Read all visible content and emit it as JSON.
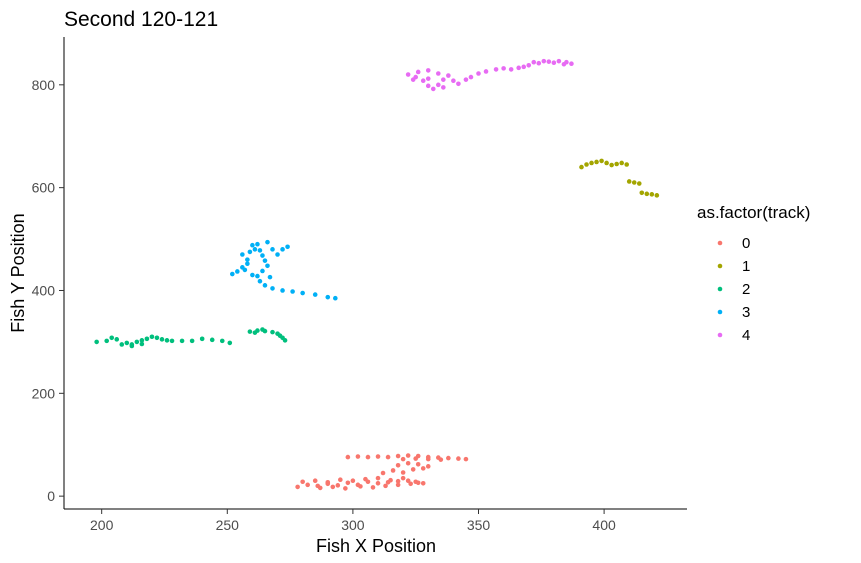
{
  "chart_data": {
    "type": "scatter",
    "title": "Second 120-121",
    "xlabel": "Fish X Position",
    "ylabel": "Fish Y Position",
    "xlim": [
      185,
      433
    ],
    "ylim": [
      -25,
      893
    ],
    "xticks": [
      200,
      250,
      300,
      350,
      400
    ],
    "yticks": [
      0,
      200,
      400,
      600,
      800
    ],
    "grid": false,
    "legend": {
      "title": "as.factor(track)",
      "position": "right",
      "entries": [
        "0",
        "1",
        "2",
        "3",
        "4"
      ]
    },
    "series": [
      {
        "name": "0",
        "color": "#F8766D",
        "points": [
          [
            278,
            18
          ],
          [
            282,
            22
          ],
          [
            286,
            20
          ],
          [
            290,
            24
          ],
          [
            294,
            21
          ],
          [
            298,
            26
          ],
          [
            302,
            22
          ],
          [
            306,
            28
          ],
          [
            310,
            25
          ],
          [
            314,
            27
          ],
          [
            318,
            29
          ],
          [
            322,
            30
          ],
          [
            326,
            26
          ],
          [
            280,
            28
          ],
          [
            285,
            30
          ],
          [
            290,
            27
          ],
          [
            295,
            32
          ],
          [
            300,
            30
          ],
          [
            305,
            33
          ],
          [
            310,
            35
          ],
          [
            315,
            31
          ],
          [
            320,
            35
          ],
          [
            325,
            28
          ],
          [
            287,
            16
          ],
          [
            292,
            18
          ],
          [
            297,
            15
          ],
          [
            303,
            19
          ],
          [
            308,
            17
          ],
          [
            313,
            20
          ],
          [
            318,
            22
          ],
          [
            323,
            24
          ],
          [
            328,
            25
          ],
          [
            312,
            45
          ],
          [
            316,
            50
          ],
          [
            320,
            46
          ],
          [
            324,
            52
          ],
          [
            328,
            54
          ],
          [
            318,
            60
          ],
          [
            322,
            64
          ],
          [
            326,
            62
          ],
          [
            330,
            58
          ],
          [
            298,
            76
          ],
          [
            302,
            77
          ],
          [
            306,
            76
          ],
          [
            310,
            77
          ],
          [
            314,
            76
          ],
          [
            318,
            78
          ],
          [
            322,
            79
          ],
          [
            326,
            78
          ],
          [
            330,
            76
          ],
          [
            334,
            75
          ],
          [
            338,
            74
          ],
          [
            342,
            73
          ],
          [
            345,
            72
          ],
          [
            335,
            71
          ],
          [
            330,
            72
          ],
          [
            325,
            73
          ],
          [
            320,
            72
          ]
        ]
      },
      {
        "name": "1",
        "color": "#A3A500",
        "points": [
          [
            391,
            640
          ],
          [
            393,
            645
          ],
          [
            395,
            648
          ],
          [
            397,
            650
          ],
          [
            399,
            652
          ],
          [
            401,
            648
          ],
          [
            403,
            644
          ],
          [
            405,
            646
          ],
          [
            407,
            648
          ],
          [
            409,
            645
          ],
          [
            410,
            612
          ],
          [
            412,
            610
          ],
          [
            414,
            608
          ],
          [
            415,
            590
          ],
          [
            417,
            588
          ],
          [
            419,
            587
          ],
          [
            421,
            585
          ]
        ]
      },
      {
        "name": "2",
        "color": "#00BF7D",
        "points": [
          [
            198,
            300
          ],
          [
            202,
            302
          ],
          [
            206,
            305
          ],
          [
            210,
            298
          ],
          [
            212,
            295
          ],
          [
            214,
            300
          ],
          [
            216,
            303
          ],
          [
            218,
            306
          ],
          [
            220,
            310
          ],
          [
            222,
            308
          ],
          [
            224,
            305
          ],
          [
            226,
            303
          ],
          [
            228,
            302
          ],
          [
            232,
            302
          ],
          [
            236,
            302
          ],
          [
            240,
            306
          ],
          [
            244,
            304
          ],
          [
            248,
            302
          ],
          [
            251,
            298
          ],
          [
            204,
            308
          ],
          [
            208,
            295
          ],
          [
            212,
            292
          ],
          [
            216,
            296
          ],
          [
            259,
            320
          ],
          [
            262,
            322
          ],
          [
            265,
            321
          ],
          [
            268,
            319
          ],
          [
            270,
            316
          ],
          [
            272,
            308
          ],
          [
            273,
            303
          ],
          [
            271,
            312
          ],
          [
            264,
            324
          ],
          [
            261,
            318
          ]
        ]
      },
      {
        "name": "3",
        "color": "#00B0F6",
        "points": [
          [
            252,
            432
          ],
          [
            254,
            437
          ],
          [
            256,
            445
          ],
          [
            258,
            460
          ],
          [
            259,
            475
          ],
          [
            260,
            488
          ],
          [
            261,
            480
          ],
          [
            263,
            478
          ],
          [
            264,
            468
          ],
          [
            265,
            458
          ],
          [
            266,
            448
          ],
          [
            264,
            438
          ],
          [
            262,
            428
          ],
          [
            263,
            418
          ],
          [
            265,
            410
          ],
          [
            268,
            404
          ],
          [
            272,
            400
          ],
          [
            276,
            398
          ],
          [
            280,
            395
          ],
          [
            285,
            392
          ],
          [
            290,
            387
          ],
          [
            293,
            385
          ],
          [
            262,
            490
          ],
          [
            266,
            494
          ],
          [
            268,
            480
          ],
          [
            270,
            470
          ],
          [
            272,
            480
          ],
          [
            274,
            485
          ],
          [
            256,
            470
          ],
          [
            257,
            440
          ],
          [
            260,
            430
          ],
          [
            267,
            426
          ],
          [
            258,
            452
          ]
        ]
      },
      {
        "name": "4",
        "color": "#E76BF3",
        "points": [
          [
            322,
            820
          ],
          [
            325,
            815
          ],
          [
            328,
            808
          ],
          [
            330,
            798
          ],
          [
            332,
            792
          ],
          [
            334,
            800
          ],
          [
            336,
            810
          ],
          [
            338,
            818
          ],
          [
            340,
            808
          ],
          [
            342,
            802
          ],
          [
            326,
            825
          ],
          [
            330,
            828
          ],
          [
            334,
            822
          ],
          [
            330,
            812
          ],
          [
            324,
            810
          ],
          [
            336,
            795
          ],
          [
            345,
            810
          ],
          [
            347,
            815
          ],
          [
            350,
            822
          ],
          [
            353,
            826
          ],
          [
            357,
            830
          ],
          [
            360,
            832
          ],
          [
            363,
            830
          ],
          [
            366,
            833
          ],
          [
            368,
            835
          ],
          [
            370,
            838
          ],
          [
            374,
            842
          ],
          [
            378,
            845
          ],
          [
            382,
            846
          ],
          [
            385,
            844
          ],
          [
            387,
            841
          ],
          [
            384,
            840
          ],
          [
            380,
            843
          ],
          [
            376,
            846
          ],
          [
            372,
            844
          ]
        ]
      }
    ]
  }
}
